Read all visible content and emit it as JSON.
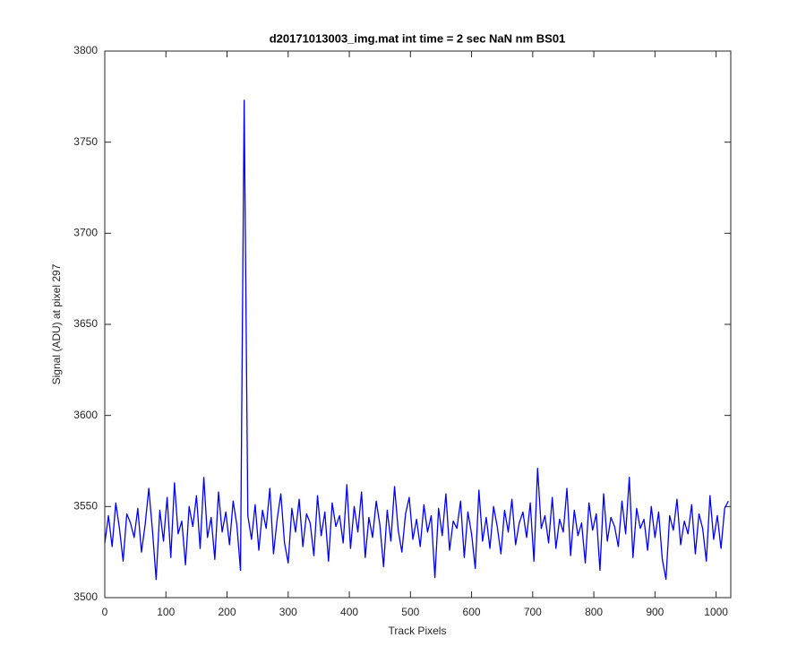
{
  "chart_data": {
    "type": "line",
    "title": "d20171013003_img.mat int time = 2 sec  NaN nm BS01",
    "xlabel": "Track Pixels",
    "ylabel": "Signal (ADU) at pixel 297",
    "color": "#0000ff",
    "xlim": [
      0,
      1024
    ],
    "ylim": [
      3500,
      3800
    ],
    "xticks": [
      0,
      100,
      200,
      300,
      400,
      500,
      600,
      700,
      800,
      900,
      1000
    ],
    "yticks": [
      3500,
      3550,
      3600,
      3650,
      3700,
      3750,
      3800
    ],
    "x": [
      0,
      6,
      12,
      18,
      24,
      30,
      36,
      42,
      48,
      54,
      60,
      66,
      72,
      78,
      84,
      90,
      96,
      102,
      108,
      114,
      120,
      126,
      132,
      138,
      144,
      150,
      156,
      162,
      168,
      174,
      180,
      186,
      192,
      198,
      204,
      210,
      216,
      222,
      228,
      234,
      240,
      246,
      252,
      258,
      264,
      270,
      276,
      282,
      288,
      294,
      300,
      306,
      312,
      318,
      324,
      330,
      336,
      342,
      348,
      354,
      360,
      366,
      372,
      378,
      384,
      390,
      396,
      402,
      408,
      414,
      420,
      426,
      432,
      438,
      444,
      450,
      456,
      462,
      468,
      474,
      480,
      486,
      492,
      498,
      504,
      510,
      516,
      522,
      528,
      534,
      540,
      546,
      552,
      558,
      564,
      570,
      576,
      582,
      588,
      594,
      600,
      606,
      612,
      618,
      624,
      630,
      636,
      642,
      648,
      654,
      660,
      666,
      672,
      678,
      684,
      690,
      696,
      702,
      708,
      714,
      720,
      726,
      732,
      738,
      744,
      750,
      756,
      762,
      768,
      774,
      780,
      786,
      792,
      798,
      804,
      810,
      816,
      822,
      828,
      834,
      840,
      846,
      852,
      858,
      864,
      870,
      876,
      882,
      888,
      894,
      900,
      906,
      912,
      918,
      924,
      930,
      936,
      942,
      948,
      954,
      960,
      966,
      972,
      978,
      984,
      990,
      996,
      1002,
      1008,
      1014,
      1020
    ],
    "values": [
      3530,
      3545,
      3528,
      3552,
      3538,
      3520,
      3546,
      3541,
      3533,
      3549,
      3525,
      3540,
      3560,
      3537,
      3510,
      3548,
      3531,
      3555,
      3522,
      3563,
      3535,
      3542,
      3518,
      3550,
      3539,
      3556,
      3527,
      3566,
      3533,
      3544,
      3521,
      3558,
      3536,
      3547,
      3529,
      3553,
      3540,
      3515,
      3773,
      3545,
      3532,
      3551,
      3526,
      3548,
      3538,
      3560,
      3524,
      3543,
      3557,
      3530,
      3519,
      3549,
      3536,
      3554,
      3528,
      3546,
      3541,
      3523,
      3556,
      3534,
      3547,
      3520,
      3552,
      3539,
      3545,
      3530,
      3562,
      3527,
      3550,
      3536,
      3558,
      3522,
      3544,
      3533,
      3553,
      3540,
      3517,
      3548,
      3531,
      3561,
      3537,
      3525,
      3546,
      3555,
      3532,
      3543,
      3528,
      3551,
      3536,
      3545,
      3511,
      3549,
      3534,
      3557,
      3526,
      3542,
      3538,
      3553,
      3522,
      3547,
      3535,
      3516,
      3559,
      3531,
      3544,
      3527,
      3550,
      3539,
      3524,
      3548,
      3536,
      3554,
      3529,
      3541,
      3547,
      3533,
      3552,
      3520,
      3571,
      3538,
      3545,
      3530,
      3555,
      3527,
      3543,
      3536,
      3560,
      3523,
      3548,
      3534,
      3541,
      3519,
      3552,
      3537,
      3546,
      3515,
      3557,
      3531,
      3544,
      3539,
      3528,
      3553,
      3535,
      3566,
      3522,
      3549,
      3538,
      3543,
      3526,
      3550,
      3533,
      3547,
      3521,
      3510,
      3545,
      3537,
      3554,
      3529,
      3542,
      3535,
      3551,
      3524,
      3546,
      3538,
      3520,
      3556,
      3532,
      3545,
      3527,
      3549,
      3553
    ]
  }
}
